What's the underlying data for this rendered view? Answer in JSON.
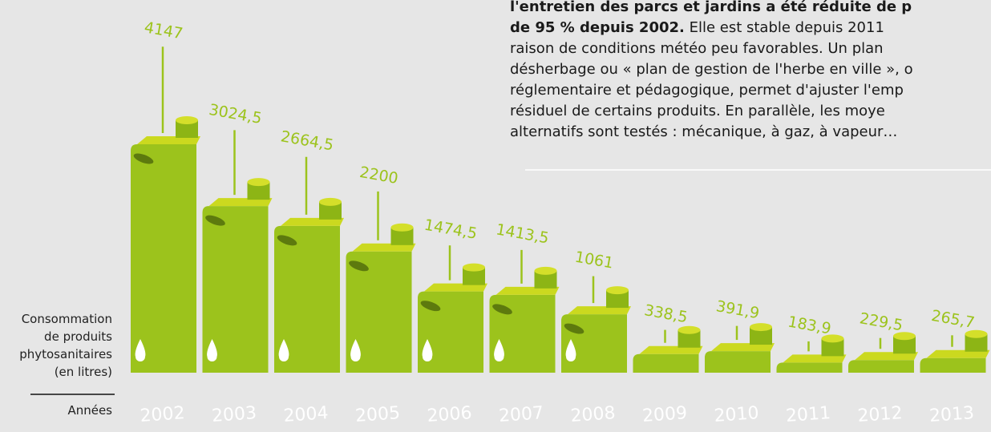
{
  "chart_data": {
    "type": "jerrycan",
    "categories": [
      "2002",
      "2003",
      "2004",
      "2005",
      "2006",
      "2007",
      "2008",
      "2009",
      "2010",
      "2011",
      "2012",
      "2013"
    ],
    "values": [
      4147,
      3024.5,
      2664.5,
      2200,
      1474.5,
      1413.5,
      1061,
      338.5,
      391.9,
      183.9,
      229.5,
      265.7
    ],
    "value_labels": [
      "4147",
      "3024,5",
      "2664,5",
      "2200",
      "1474,5",
      "1413,5",
      "1061",
      "338,5",
      "391,9",
      "183,9",
      "229,5",
      "265,7"
    ],
    "color": "#9cc31c",
    "y_label": [
      "Consommation",
      "de produits",
      "phytosanitaires",
      "(en litres)"
    ],
    "x_label": "Années"
  },
  "paragraph": [
    {
      "bold": "l'entretien des parcs et jardins a été réduite de p"
    },
    {
      "bold": "de 95 % depuis 2002.",
      "regular": " Elle est stable depuis 2011"
    },
    {
      "regular": "raison de conditions météo peu favorables. Un plan"
    },
    {
      "regular": "désherbage ou « plan de gestion de l'herbe en ville », o"
    },
    {
      "regular": "réglementaire et pédagogique, permet d'ajuster l'emp"
    },
    {
      "regular": "résiduel de certains produits. En parallèle, les moye"
    },
    {
      "regular": "alternatifs sont testés : mécanique, à gaz, à vapeur…"
    }
  ]
}
